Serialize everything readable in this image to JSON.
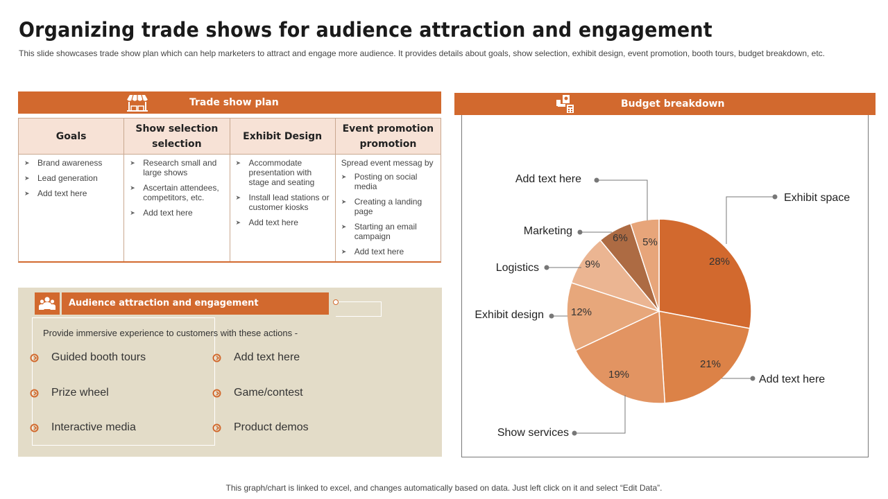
{
  "title": "Organizing trade shows for audience attraction and engagement",
  "subtitle": "This slide showcases trade show plan which can help marketers to attract and engage more audience. It provides details about goals, show selection, exhibit design, event promotion, booth tours, budget breakdown, etc.",
  "footnote": "This graph/chart is linked to excel, and changes automatically based on data. Just left click on it and select “Edit Data”.",
  "trade_show_plan": {
    "header": "Trade show plan",
    "icon": "market-stall-icon",
    "columns": [
      {
        "heading": "Goals",
        "intro": "",
        "items": [
          "Brand awareness",
          "Lead generation",
          "Add text here"
        ]
      },
      {
        "heading": "Show selection selection",
        "intro": "",
        "items": [
          "Research small and large shows",
          "Ascertain attendees, competitors, etc.",
          "Add text here"
        ]
      },
      {
        "heading": "Exhibit Design",
        "intro": "",
        "items": [
          "Accommodate presentation with stage and seating",
          "Install lead stations or customer kiosks",
          "Add text here"
        ]
      },
      {
        "heading": "Event promotion promotion",
        "intro": "Spread event messag by",
        "items": [
          "Posting on social media",
          "Creating a landing page",
          "Starting an email campaign",
          "Add text here"
        ]
      }
    ]
  },
  "audience": {
    "header": "Audience attraction and engagement",
    "icon": "crowd-icon",
    "intro": "Provide immersive experience to customers with these actions -",
    "left_items": [
      "Guided booth tours",
      "Prize wheel",
      "Interactive media"
    ],
    "right_items": [
      "Add text here",
      "Game/contest",
      "Product demos"
    ]
  },
  "budget": {
    "header": "Budget breakdown",
    "icon": "budget-icon"
  },
  "chart_data": {
    "type": "pie",
    "title": "",
    "slices": [
      {
        "label": "Exhibit space",
        "value": 28,
        "display": "28%",
        "color": "#d2692e"
      },
      {
        "label": "Add text here",
        "value": 21,
        "display": "21%",
        "color": "#dc8247"
      },
      {
        "label": "Show services",
        "value": 19,
        "display": "19%",
        "color": "#e29462"
      },
      {
        "label": "Exhibit design",
        "value": 12,
        "display": "12%",
        "color": "#e7a77b"
      },
      {
        "label": "Logistics",
        "value": 9,
        "display": "9%",
        "color": "#ebb592"
      },
      {
        "label": "Marketing",
        "value": 6,
        "display": "6%",
        "color": "#ad6b43"
      },
      {
        "label": "Add text here",
        "value": 5,
        "display": "5%",
        "color": "#e7a57a"
      }
    ]
  }
}
